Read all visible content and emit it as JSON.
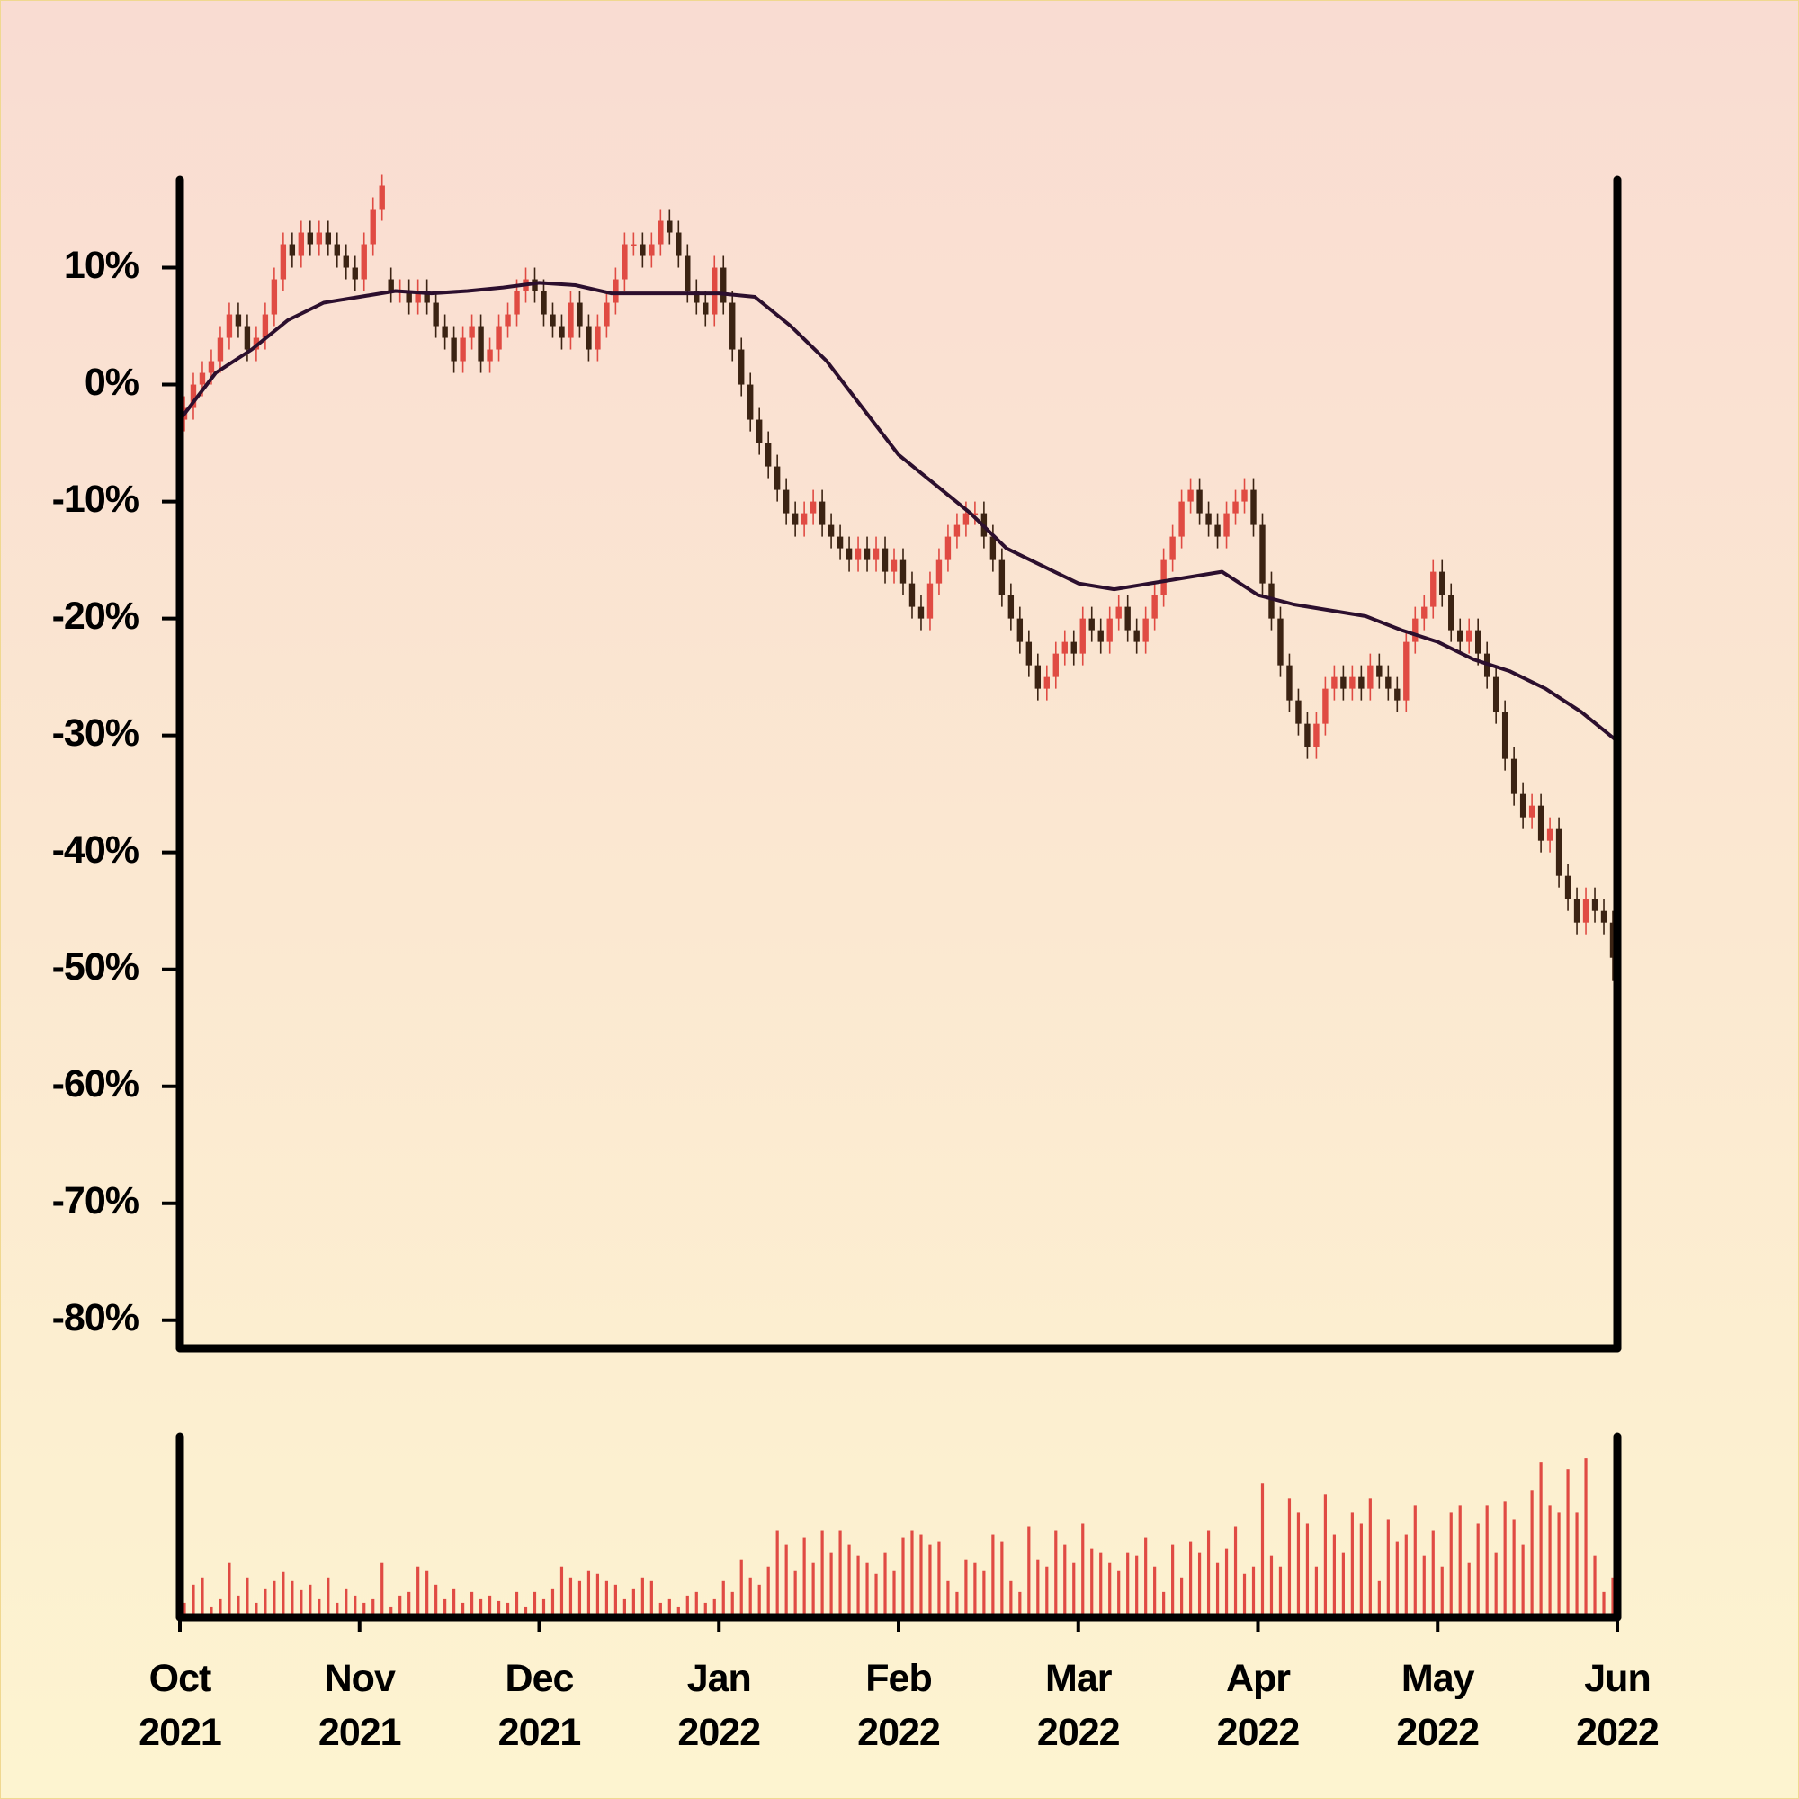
{
  "chart_data": {
    "type": "candlestick",
    "xlim": [
      0,
      8
    ],
    "xticks": [
      {
        "value": 0,
        "label": "Oct\n2021"
      },
      {
        "value": 1,
        "label": "Nov\n2021"
      },
      {
        "value": 2,
        "label": "Dec\n2021"
      },
      {
        "value": 3,
        "label": "Jan\n2022"
      },
      {
        "value": 4,
        "label": "Feb\n2022"
      },
      {
        "value": 5,
        "label": "Mar\n2022"
      },
      {
        "value": 6,
        "label": "Apr\n2022"
      },
      {
        "value": 7,
        "label": "May\n2022"
      },
      {
        "value": 8,
        "label": "Jun\n2022"
      }
    ],
    "ylim": [
      -82.4,
      17.5
    ],
    "yticks": [
      {
        "value": -80,
        "label": "-80%"
      },
      {
        "value": -70,
        "label": "-70%"
      },
      {
        "value": -60,
        "label": "-60%"
      },
      {
        "value": -50,
        "label": "-50%"
      },
      {
        "value": -40,
        "label": "-40%"
      },
      {
        "value": -30,
        "label": "-30%"
      },
      {
        "value": -20,
        "label": "-20%"
      },
      {
        "value": -10,
        "label": "-10%"
      },
      {
        "value": 0,
        "label": "0%"
      },
      {
        "value": 10,
        "label": "10%"
      }
    ],
    "up_color": "#e04b43",
    "down_color": "#3b2313",
    "open": [
      -3,
      -2,
      0,
      1,
      2,
      4,
      6,
      5,
      3,
      4,
      6,
      9,
      12,
      11,
      13,
      12,
      13,
      12,
      11,
      10,
      9,
      12,
      15,
      9,
      8,
      8,
      7,
      8,
      7,
      5,
      4,
      2,
      4,
      5,
      2,
      3,
      5,
      6,
      8,
      9,
      8,
      6,
      5,
      4,
      7,
      5,
      3,
      5,
      7,
      9,
      12,
      12,
      11,
      12,
      14,
      13,
      11,
      8,
      7,
      6,
      10,
      7,
      3,
      0,
      -3,
      -5,
      -7,
      -9,
      -11,
      -12,
      -11,
      -10,
      -12,
      -13,
      -14,
      -15,
      -14,
      -15,
      -14,
      -16,
      -15,
      -17,
      -19,
      -20,
      -17,
      -15,
      -13,
      -12,
      -11,
      -11,
      -13,
      -15,
      -18,
      -20,
      -22,
      -24,
      -26,
      -25,
      -23,
      -22,
      -23,
      -20,
      -21,
      -22,
      -20,
      -19,
      -21,
      -22,
      -20,
      -18,
      -15,
      -13,
      -10,
      -9,
      -11,
      -12,
      -13,
      -11,
      -10,
      -9,
      -12,
      -17,
      -20,
      -24,
      -27,
      -29,
      -31,
      -29,
      -26,
      -25,
      -26,
      -25,
      -26,
      -24,
      -25,
      -26,
      -27,
      -22,
      -20,
      -19,
      -16,
      -18,
      -21,
      -22,
      -21,
      -23,
      -25,
      -28,
      -32,
      -35,
      -37,
      -36,
      -39,
      -38,
      -42,
      -44,
      -46,
      -44,
      -45,
      -46
    ],
    "high": [
      -1,
      1,
      2,
      3,
      5,
      7,
      7,
      6,
      5,
      7,
      10,
      13,
      13,
      14,
      14,
      14,
      14,
      13,
      12,
      11,
      13,
      16,
      18,
      10,
      9,
      9,
      9,
      9,
      8,
      6,
      5,
      5,
      6,
      6,
      4,
      6,
      7,
      9,
      10,
      10,
      9,
      7,
      6,
      8,
      8,
      6,
      6,
      8,
      10,
      13,
      13,
      13,
      13,
      15,
      15,
      14,
      12,
      9,
      8,
      11,
      11,
      8,
      4,
      1,
      -2,
      -4,
      -6,
      -8,
      -10,
      -10,
      -9,
      -9,
      -11,
      -12,
      -13,
      -13,
      -13,
      -13,
      -13,
      -14,
      -14,
      -16,
      -18,
      -16,
      -14,
      -12,
      -11,
      -10,
      -10,
      -10,
      -12,
      -14,
      -17,
      -19,
      -21,
      -23,
      -24,
      -22,
      -21,
      -21,
      -19,
      -19,
      -20,
      -19,
      -18,
      -18,
      -20,
      -19,
      -17,
      -14,
      -12,
      -9,
      -8,
      -8,
      -10,
      -11,
      -10,
      -9,
      -8,
      -8,
      -11,
      -16,
      -19,
      -23,
      -26,
      -28,
      -28,
      -25,
      -24,
      -24,
      -24,
      -24,
      -23,
      -23,
      -24,
      -25,
      -21,
      -19,
      -18,
      -15,
      -15,
      -17,
      -20,
      -20,
      -20,
      -22,
      -24,
      -27,
      -31,
      -34,
      -35,
      -35,
      -37,
      -37,
      -41,
      -43,
      -43,
      -43,
      -44,
      -45
    ],
    "low": [
      -4,
      -3,
      -1,
      0,
      1,
      3,
      4,
      2,
      2,
      3,
      5,
      8,
      10,
      10,
      11,
      11,
      11,
      10,
      9,
      8,
      8,
      11,
      14,
      7,
      7,
      6,
      6,
      6,
      4,
      3,
      1,
      1,
      3,
      1,
      1,
      2,
      4,
      5,
      7,
      7,
      5,
      4,
      3,
      3,
      4,
      2,
      2,
      4,
      6,
      8,
      11,
      10,
      10,
      11,
      12,
      10,
      7,
      6,
      5,
      5,
      6,
      2,
      -1,
      -4,
      -6,
      -8,
      -10,
      -12,
      -13,
      -13,
      -12,
      -13,
      -14,
      -15,
      -16,
      -16,
      -16,
      -16,
      -17,
      -17,
      -18,
      -20,
      -21,
      -21,
      -18,
      -16,
      -14,
      -13,
      -12,
      -14,
      -16,
      -19,
      -21,
      -23,
      -25,
      -27,
      -27,
      -26,
      -24,
      -24,
      -24,
      -22,
      -23,
      -23,
      -21,
      -22,
      -23,
      -23,
      -21,
      -19,
      -16,
      -14,
      -11,
      -12,
      -13,
      -14,
      -14,
      -12,
      -11,
      -13,
      -18,
      -21,
      -25,
      -28,
      -30,
      -32,
      -32,
      -30,
      -27,
      -27,
      -27,
      -27,
      -27,
      -26,
      -27,
      -28,
      -28,
      -23,
      -21,
      -20,
      -19,
      -22,
      -23,
      -23,
      -24,
      -26,
      -29,
      -33,
      -36,
      -38,
      -38,
      -40,
      -40,
      -43,
      -45,
      -47,
      -47,
      -46,
      -47,
      -51
    ],
    "close": [
      -2,
      0,
      1,
      2,
      4,
      6,
      5,
      3,
      4,
      6,
      9,
      12,
      11,
      13,
      12,
      13,
      12,
      11,
      10,
      9,
      12,
      15,
      17,
      8,
      8,
      7,
      8,
      7,
      5,
      4,
      2,
      4,
      5,
      2,
      3,
      5,
      6,
      8,
      9,
      8,
      6,
      5,
      4,
      7,
      5,
      3,
      5,
      7,
      9,
      12,
      12,
      11,
      12,
      14,
      13,
      11,
      8,
      7,
      6,
      10,
      7,
      3,
      0,
      -3,
      -5,
      -7,
      -9,
      -11,
      -12,
      -11,
      -10,
      -12,
      -13,
      -14,
      -15,
      -14,
      -15,
      -14,
      -16,
      -15,
      -17,
      -19,
      -20,
      -17,
      -15,
      -13,
      -12,
      -11,
      -11,
      -13,
      -15,
      -18,
      -20,
      -22,
      -24,
      -26,
      -25,
      -23,
      -22,
      -23,
      -20,
      -21,
      -22,
      -20,
      -19,
      -21,
      -22,
      -20,
      -18,
      -15,
      -13,
      -10,
      -9,
      -11,
      -12,
      -13,
      -11,
      -10,
      -9,
      -12,
      -17,
      -20,
      -24,
      -27,
      -29,
      -31,
      -29,
      -26,
      -25,
      -26,
      -25,
      -26,
      -24,
      -25,
      -26,
      -27,
      -22,
      -20,
      -19,
      -16,
      -18,
      -21,
      -22,
      -21,
      -23,
      -25,
      -28,
      -32,
      -35,
      -37,
      -36,
      -39,
      -38,
      -42,
      -44,
      -46,
      -44,
      -45,
      -46,
      -49
    ],
    "moving_average": {
      "color": "#2c0f2e",
      "values": [
        -3,
        1,
        3,
        5.5,
        7,
        7.5,
        8,
        7.8,
        8,
        8.3,
        8.7,
        8.5,
        7.8,
        7.8,
        7.8,
        7.8,
        7.5,
        5,
        2,
        -2,
        -6,
        -8.5,
        -11,
        -14,
        -15.5,
        -17,
        -17.5,
        -17,
        -16.5,
        -16,
        -18,
        -18.8,
        -19.3,
        -19.8,
        -21,
        -22,
        -23.5,
        -24.5,
        -26,
        -28,
        -30.5
      ]
    },
    "volume": {
      "color": "#e04b43",
      "ylim": [
        0,
        100
      ],
      "values": [
        8,
        18,
        22,
        6,
        10,
        30,
        12,
        22,
        8,
        16,
        20,
        25,
        20,
        15,
        18,
        10,
        22,
        8,
        16,
        12,
        8,
        10,
        30,
        6,
        12,
        14,
        28,
        26,
        18,
        10,
        16,
        8,
        14,
        10,
        12,
        9,
        8,
        14,
        6,
        14,
        10,
        16,
        28,
        22,
        20,
        26,
        24,
        20,
        18,
        10,
        16,
        22,
        20,
        8,
        10,
        6,
        12,
        14,
        8,
        10,
        20,
        14,
        32,
        22,
        18,
        28,
        48,
        40,
        26,
        44,
        30,
        48,
        36,
        48,
        40,
        34,
        30,
        24,
        36,
        26,
        44,
        48,
        46,
        40,
        42,
        20,
        14,
        32,
        30,
        26,
        46,
        42,
        20,
        14,
        50,
        32,
        28,
        48,
        40,
        30,
        52,
        38,
        36,
        30,
        26,
        36,
        34,
        44,
        28,
        14,
        40,
        22,
        42,
        36,
        48,
        30,
        38,
        50,
        24,
        28,
        74,
        34,
        28,
        66,
        58,
        52,
        28,
        68,
        46,
        36,
        58,
        52,
        66,
        20,
        54,
        42,
        46,
        62,
        34,
        48,
        28,
        58,
        62,
        30,
        52,
        62,
        36,
        64,
        54,
        40,
        70,
        86,
        62,
        58,
        82,
        58,
        88,
        34,
        14,
        22
      ]
    }
  }
}
